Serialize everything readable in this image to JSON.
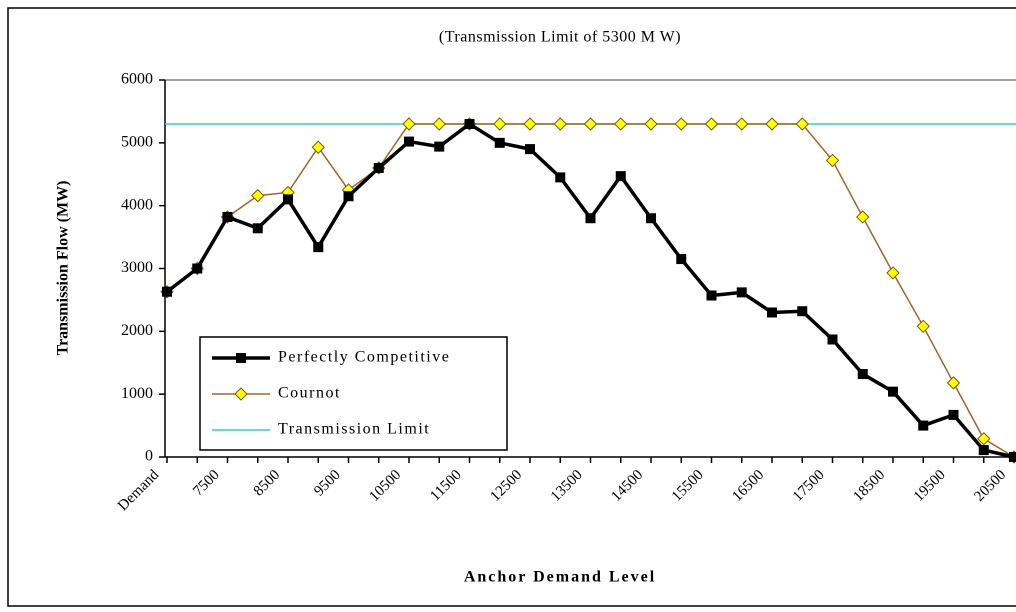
{
  "chart_data": {
    "type": "line",
    "title": "(Transmission Limit of 5300 M W)",
    "xlabel": "Anchor Demand Level",
    "ylabel": "Transmission Flow (MW)",
    "categories": [
      "Demand",
      null,
      "7500",
      null,
      "8500",
      null,
      "9500",
      null,
      "10500",
      null,
      "11500",
      null,
      "12500",
      null,
      "13500",
      null,
      "14500",
      null,
      "15500",
      null,
      "16500",
      null,
      "17500",
      null,
      "18500",
      null,
      "19500",
      null,
      "20500"
    ],
    "series": [
      {
        "name": "Perfectly Competitive",
        "color": "#000000",
        "marker": "square",
        "values": [
          2630,
          3000,
          3820,
          3640,
          4100,
          3340,
          4150,
          4600,
          5020,
          4940,
          5300,
          5000,
          4900,
          4450,
          3800,
          4470,
          3800,
          3150,
          2570,
          2620,
          2300,
          2320,
          1870,
          1320,
          1040,
          500,
          670,
          110,
          0
        ]
      },
      {
        "name": "Cournot",
        "color": "#a0662a",
        "marker": "diamond",
        "values": [
          2630,
          3000,
          3820,
          4160,
          4210,
          4930,
          4250,
          4600,
          5300,
          5300,
          5300,
          5300,
          5300,
          5300,
          5300,
          5300,
          5300,
          5300,
          5300,
          5300,
          5300,
          5300,
          4720,
          3820,
          2930,
          2080,
          1180,
          290,
          0
        ]
      }
    ],
    "limit": {
      "name": "Transmission Limit",
      "value": 5300,
      "color": "#33cccc"
    },
    "ylim": [
      0,
      6000
    ],
    "yticks": [
      0,
      1000,
      2000,
      3000,
      4000,
      5000,
      6000
    ],
    "legend": "lower left"
  }
}
